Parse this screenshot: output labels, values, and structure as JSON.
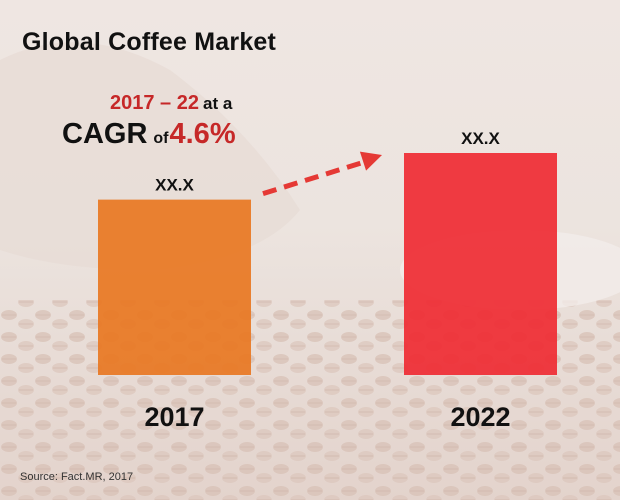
{
  "header": {
    "title": "Global Coffee Market"
  },
  "cagr": {
    "period": "2017 – 22",
    "period_suffix": "at a",
    "word": "CAGR",
    "of": "of",
    "rate": "4.6%"
  },
  "source": "Source: Fact.MR, 2017",
  "colors": {
    "bar_2017": "#e87722",
    "bar_2022": "#ef2b33",
    "arrow": "#e53935",
    "accent_text": "#c62828"
  },
  "chart_data": {
    "type": "bar",
    "categories": [
      "2017",
      "2022"
    ],
    "value_labels": [
      "XX.X",
      "XX.X"
    ],
    "relative_heights": [
      0.79,
      1.0
    ],
    "title": "Global Coffee Market",
    "grid": false,
    "legend": "none"
  }
}
